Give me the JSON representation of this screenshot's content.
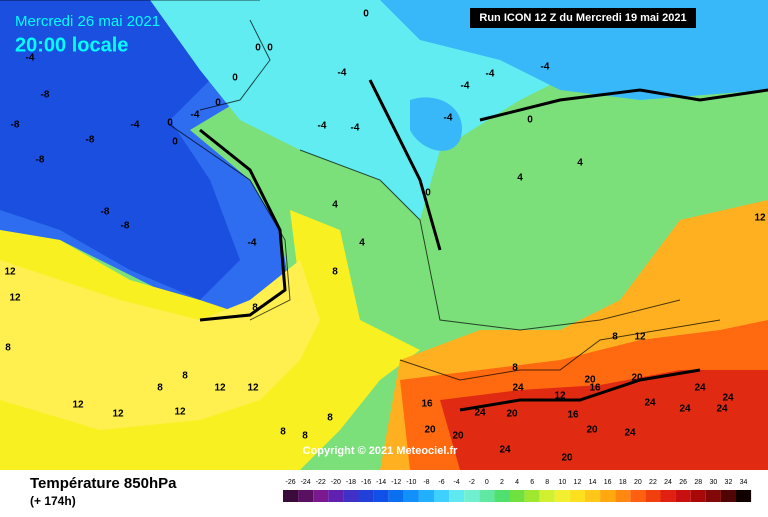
{
  "header": {
    "date": "Mercredi 26 mai 2021",
    "time": "20:00 locale",
    "run": "Run ICON 12 Z du Mercredi 19 mai 2021"
  },
  "map": {
    "copyright": "Copyright © 2021 Meteociel.fr",
    "labels": [
      -4,
      -8,
      -8,
      -8,
      -8,
      -4,
      -8,
      -8,
      -4,
      0,
      0,
      -4,
      0,
      0,
      0,
      0,
      0,
      -4,
      -4,
      -4,
      -4,
      -4,
      -4,
      -4,
      0,
      0,
      4,
      4,
      4,
      4,
      8,
      8,
      12,
      12,
      8,
      8,
      12,
      12,
      8,
      12,
      12,
      12,
      16,
      24,
      20,
      24,
      20,
      16,
      24,
      24,
      20,
      24,
      24,
      24,
      16,
      20,
      24,
      24,
      20,
      20,
      20,
      12,
      8,
      12,
      8,
      12,
      8,
      8,
      8
    ]
  },
  "footer": {
    "title": "Température 850hPa",
    "subtitle": "(+ 174h)"
  },
  "legend": {
    "ticks": [
      -26,
      -24,
      -22,
      -20,
      -18,
      -16,
      -14,
      -12,
      -10,
      -8,
      -6,
      -4,
      -2,
      0,
      2,
      4,
      6,
      8,
      10,
      12,
      14,
      16,
      18,
      20,
      22,
      24,
      26,
      28,
      30,
      32,
      34
    ],
    "colors": [
      "#3a0a3a",
      "#5a1060",
      "#7a1890",
      "#6020b0",
      "#4030c8",
      "#2040d8",
      "#1050e8",
      "#0a70f0",
      "#1090f8",
      "#20b0ff",
      "#40d0ff",
      "#60e8f0",
      "#70f0d0",
      "#60e8a0",
      "#50e070",
      "#70e040",
      "#a0e830",
      "#d0f030",
      "#f0f030",
      "#ffe020",
      "#ffc818",
      "#ffa810",
      "#ff8810",
      "#ff6010",
      "#f04010",
      "#e02010",
      "#c81010",
      "#a80808",
      "#800808",
      "#500404",
      "#100000"
    ]
  }
}
